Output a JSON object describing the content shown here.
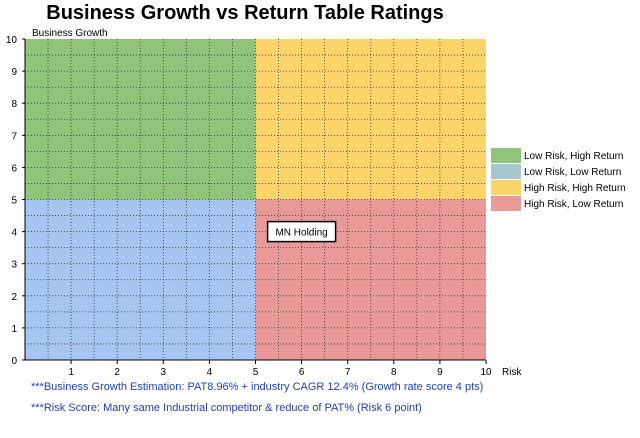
{
  "chart_data": {
    "type": "scatter",
    "title": "Business Growth vs Return Table Ratings",
    "xlabel": "Risk",
    "ylabel": "Business Growth",
    "xlim": [
      0,
      10
    ],
    "ylim": [
      0,
      10
    ],
    "x_ticks": [
      1,
      2,
      3,
      4,
      5,
      6,
      7,
      8,
      9,
      10
    ],
    "y_ticks": [
      0,
      1,
      2,
      3,
      4,
      5,
      6,
      7,
      8,
      9,
      10
    ],
    "grid": true,
    "quadrants": [
      {
        "name": "Low Risk, High Return",
        "x": [
          0,
          5
        ],
        "y": [
          5,
          10
        ],
        "color": "#90c47b"
      },
      {
        "name": "Low Risk, Low Return",
        "x": [
          0,
          5
        ],
        "y": [
          0,
          5
        ],
        "color": "#a6c5f0"
      },
      {
        "name": "High Risk, High Return",
        "x": [
          5,
          10
        ],
        "y": [
          5,
          10
        ],
        "color": "#fdd46a"
      },
      {
        "name": "High Risk, Low Return",
        "x": [
          5,
          10
        ],
        "y": [
          0,
          5
        ],
        "color": "#e99a98"
      }
    ],
    "legend": {
      "placement": "right",
      "entries": [
        {
          "label": "Low Risk, High Return",
          "color": "#90c47b"
        },
        {
          "label": "Low Risk, Low Return",
          "color": "#a6c7cf"
        },
        {
          "label": "High Risk, High Return",
          "color": "#fdd46a"
        },
        {
          "label": "High Risk, Low Return",
          "color": "#e99a98"
        }
      ]
    },
    "points": [
      {
        "label": "MN Holding",
        "x": 6,
        "y": 4
      }
    ]
  },
  "notes": [
    "***Business Growth Estimation: PAT8.96% + industry CAGR 12.4% (Growth rate score 4 pts)",
    "***Risk Score: Many same Industrial competitor & reduce of PAT% (Risk 6 point)"
  ]
}
